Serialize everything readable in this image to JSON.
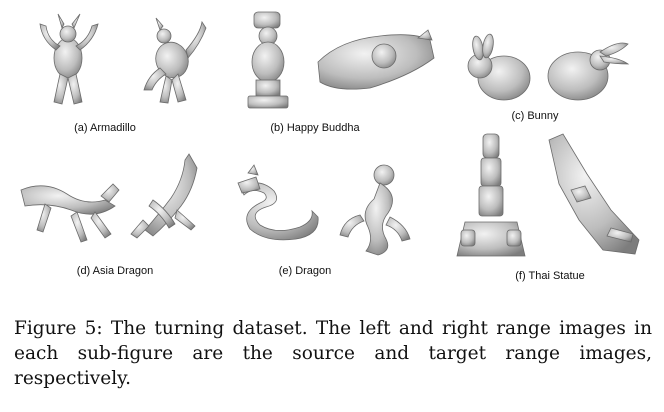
{
  "subfigures": [
    {
      "label": "(a) Armadillo",
      "source_icon": "armadillo-scan",
      "target_icon": "armadillo-scan"
    },
    {
      "label": "(b) Happy Buddha",
      "source_icon": "buddha-scan",
      "target_icon": "buddha-scan"
    },
    {
      "label": "(c) Bunny",
      "source_icon": "bunny-scan",
      "target_icon": "bunny-scan"
    },
    {
      "label": "(d) Asia Dragon",
      "source_icon": "asia-dragon-scan",
      "target_icon": "asia-dragon-scan"
    },
    {
      "label": "(e) Dragon",
      "source_icon": "dragon-scan",
      "target_icon": "dragon-scan"
    },
    {
      "label": "(f) Thai Statue",
      "source_icon": "thai-statue-scan",
      "target_icon": "thai-statue-scan"
    }
  ],
  "caption": "Figure 5: The turning dataset. The left and right range images in each sub-figure are the source and target range images, respectively.",
  "colors": {
    "model_fill": "#c9c9c9",
    "model_stroke": "#6b6b6b"
  }
}
